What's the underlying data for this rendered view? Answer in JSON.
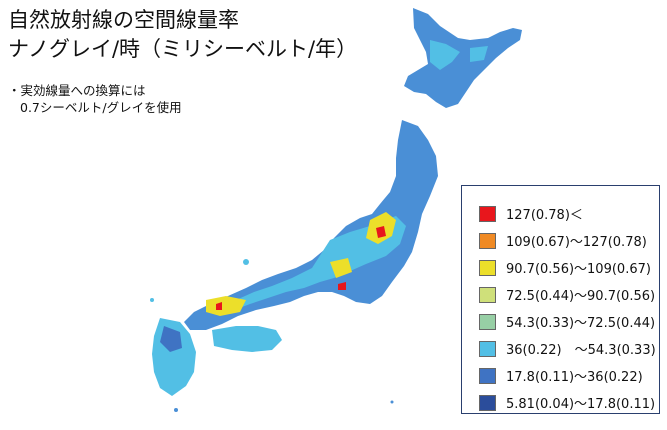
{
  "title": {
    "line1": "自然放射線の空間線量率",
    "line2": "ナノグレイ/時（ミリシーベルト/年）"
  },
  "note": {
    "line1": "・実効線量への換算には",
    "line2": "0.7シーベルト/グレイを使用"
  },
  "legend": [
    {
      "label": "127(0.78)＜",
      "color": "#e8161c"
    },
    {
      "label": "109(0.67)～127(0.78)",
      "color": "#f08a24"
    },
    {
      "label": "90.7(0.56)～109(0.67)",
      "color": "#ecdf2a"
    },
    {
      "label": "72.5(0.44)～90.7(0.56)",
      "color": "#cfe07a"
    },
    {
      "label": "54.3(0.33)～72.5(0.44)",
      "color": "#97cfa5"
    },
    {
      "label": "36(0.22)　～54.3(0.33)",
      "color": "#52bfe5"
    },
    {
      "label": "17.8(0.11)～36(0.22)",
      "color": "#3f73c3"
    },
    {
      "label": "5.81(0.04)～17.8(0.11)",
      "color": "#2b4d9b"
    }
  ]
}
